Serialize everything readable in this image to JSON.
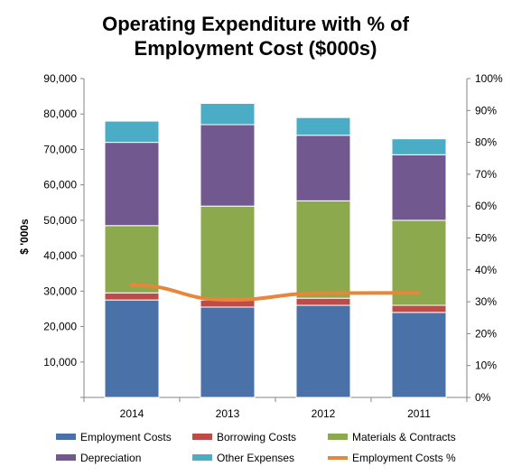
{
  "chart_data": {
    "type": "bar",
    "stacked": true,
    "title_lines": [
      "Operating Expenditure with % of",
      "Employment Cost ($000s)"
    ],
    "xlabel": "",
    "ylabel": "$ '000s",
    "categories": [
      "2014",
      "2013",
      "2012",
      "2011"
    ],
    "ylim": [
      0,
      90000
    ],
    "yticks": [
      "",
      "10,000",
      "20,000",
      "30,000",
      "40,000",
      "50,000",
      "60,000",
      "70,000",
      "80,000",
      "90,000"
    ],
    "y2lim": [
      0,
      1
    ],
    "y2ticks": [
      "0%",
      "10%",
      "20%",
      "30%",
      "40%",
      "50%",
      "60%",
      "70%",
      "80%",
      "90%",
      "100%"
    ],
    "grid": false,
    "legend_position": "bottom",
    "series": [
      {
        "name": "Employment Costs",
        "color": "#4a72a8",
        "values": [
          27500,
          25500,
          26000,
          24000
        ]
      },
      {
        "name": "Borrowing Costs",
        "color": "#be4b48",
        "values": [
          2000,
          2000,
          2000,
          2000
        ]
      },
      {
        "name": "Materials & Contracts",
        "color": "#8caa4d",
        "values": [
          19000,
          26500,
          27500,
          24000
        ]
      },
      {
        "name": "Depreciation",
        "color": "#71588f",
        "values": [
          23500,
          23000,
          18500,
          18500
        ]
      },
      {
        "name": "Other Expenses",
        "color": "#4bacc6",
        "values": [
          6000,
          6000,
          5000,
          4500
        ]
      }
    ],
    "line_series": {
      "name": "Employment Costs %",
      "color": "#e8863a",
      "axis": "secondary",
      "values": [
        0.352,
        0.306,
        0.327,
        0.328
      ]
    }
  }
}
